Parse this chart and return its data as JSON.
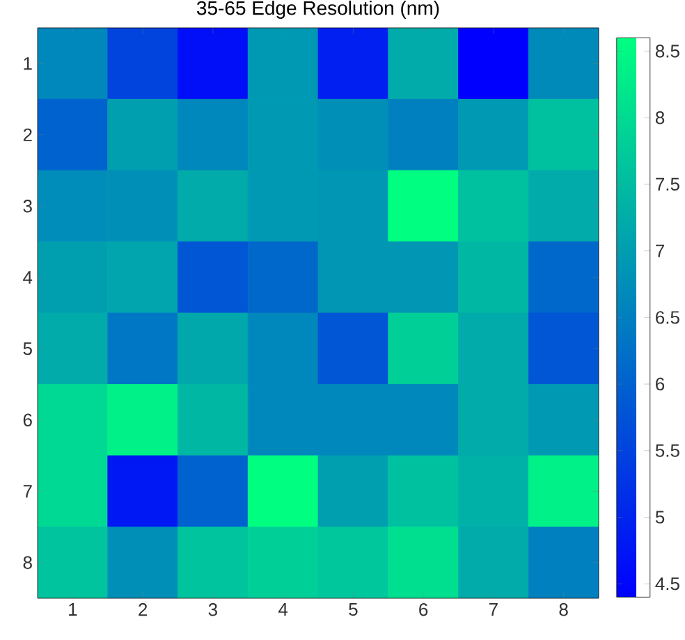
{
  "chart_data": {
    "type": "heatmap",
    "title": "35-65 Edge Resolution (nm)",
    "categories": [
      "1",
      "2",
      "3",
      "4",
      "5",
      "6",
      "7",
      "8"
    ],
    "y_categories": [
      "1",
      "2",
      "3",
      "4",
      "5",
      "6",
      "7",
      "8"
    ],
    "cells": [
      [
        6.6,
        5.5,
        4.65,
        6.9,
        4.9,
        7.2,
        4.4,
        6.65
      ],
      [
        6.0,
        7.0,
        6.6,
        6.9,
        6.75,
        6.5,
        6.9,
        7.55
      ],
      [
        6.7,
        6.75,
        7.2,
        6.9,
        6.85,
        8.6,
        7.55,
        7.2
      ],
      [
        7.0,
        7.1,
        5.8,
        6.1,
        6.85,
        6.85,
        7.4,
        6.1
      ],
      [
        7.2,
        6.35,
        7.15,
        6.6,
        5.8,
        7.8,
        7.2,
        5.8
      ],
      [
        7.95,
        8.35,
        7.4,
        6.6,
        6.6,
        6.6,
        7.2,
        6.9
      ],
      [
        7.95,
        4.8,
        6.0,
        8.6,
        7.0,
        7.55,
        7.3,
        8.35
      ],
      [
        7.6,
        6.75,
        7.6,
        7.8,
        7.65,
        8.05,
        7.2,
        6.5
      ]
    ],
    "clim": [
      4.4,
      8.6
    ],
    "cticks": [
      4.5,
      5,
      5.5,
      6,
      6.5,
      7,
      7.5,
      8,
      8.5
    ],
    "grid": false
  }
}
